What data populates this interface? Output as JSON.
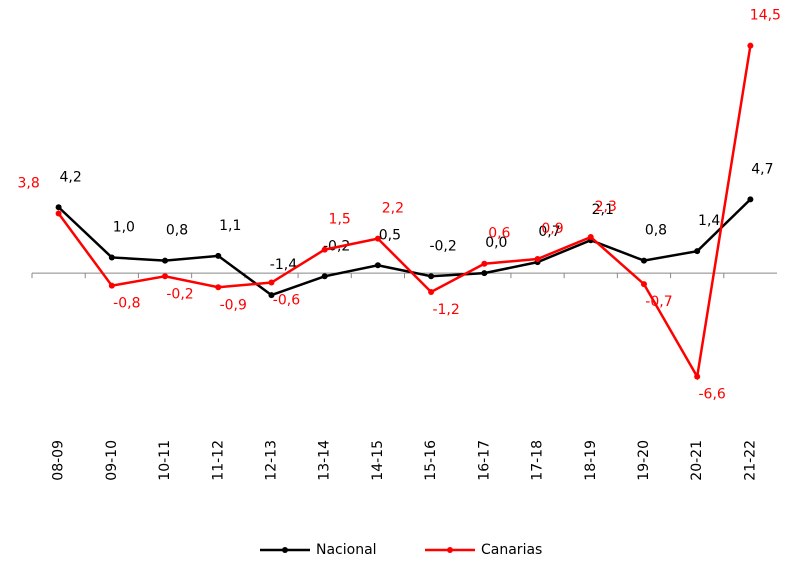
{
  "chart_data": {
    "type": "line",
    "categories": [
      "08-09",
      "09-10",
      "10-11",
      "11-12",
      "12-13",
      "13-14",
      "14-15",
      "15-16",
      "16-17",
      "17-18",
      "18-19",
      "19-20",
      "20-21",
      "21-22"
    ],
    "series": [
      {
        "name": "Nacional",
        "color": "#000000",
        "values": [
          4.2,
          1.0,
          0.8,
          1.1,
          -1.4,
          -0.2,
          0.5,
          -0.2,
          0.0,
          0.7,
          2.1,
          0.8,
          1.4,
          4.7
        ],
        "value_labels": [
          "4,2",
          "1,0",
          "0,8",
          "1,1",
          "-1,4",
          "-0,2",
          "0,5",
          "-0,2",
          "0,0",
          "0,7",
          "2,1",
          "0,8",
          "1,4",
          "4,7"
        ]
      },
      {
        "name": "Canarias",
        "color": "#ff0000",
        "values": [
          3.8,
          -0.8,
          -0.2,
          -0.9,
          -0.6,
          1.5,
          2.2,
          -1.2,
          0.6,
          0.9,
          2.3,
          -0.7,
          -6.6,
          14.5
        ],
        "value_labels": [
          "3,8",
          "-0,8",
          "-0,2",
          "-0,9",
          "-0,6",
          "1,5",
          "2,2",
          "-1,2",
          "0,6",
          "0,9",
          "2,3",
          "-0,7",
          "-6,6",
          "14,5"
        ]
      }
    ],
    "ylim": [
      -10,
      15.5
    ],
    "legend": "bottom"
  }
}
